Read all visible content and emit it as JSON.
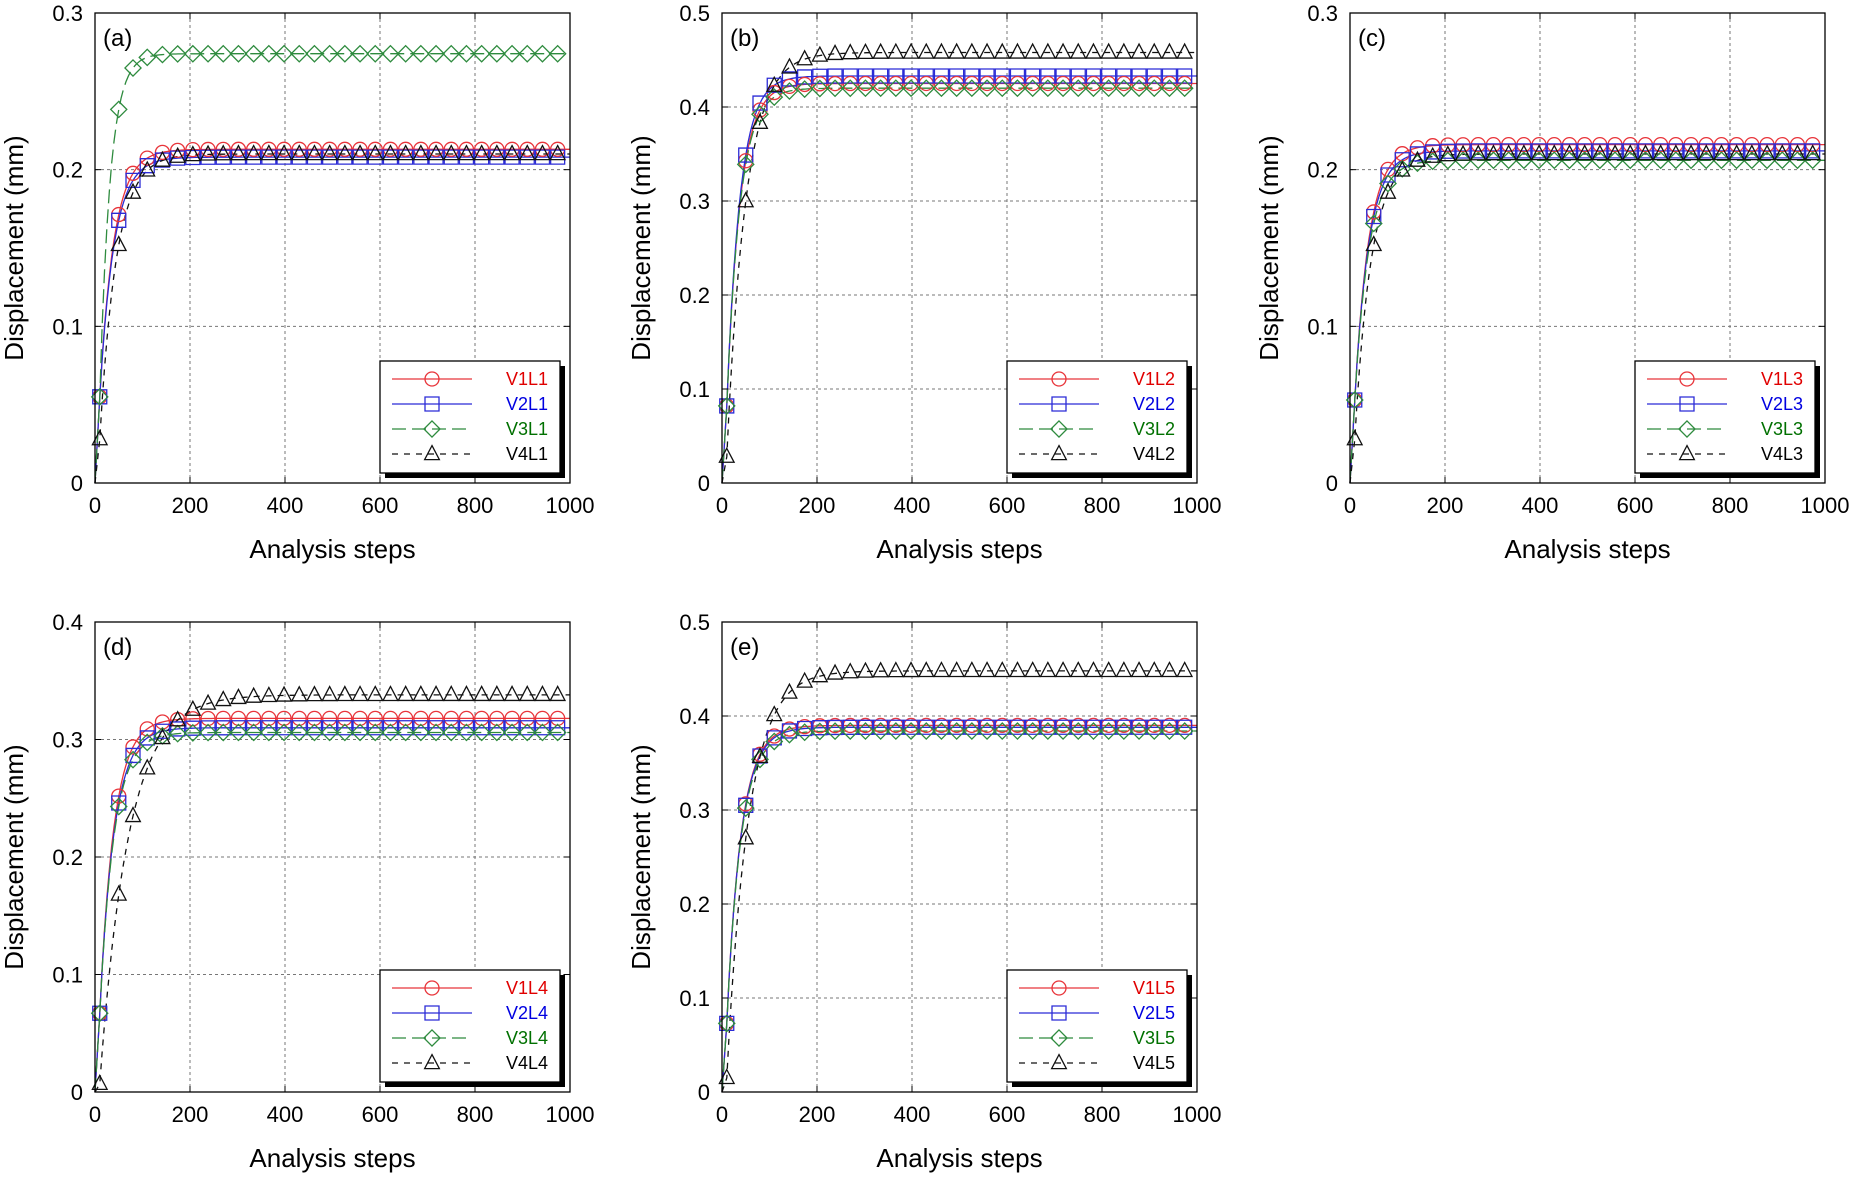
{
  "colors": {
    "V1": "#e8343a",
    "V2": "#2b2bd6",
    "V3": "#2e8b3e",
    "V4": "#111111",
    "V1_text": "#e00000",
    "V2_text": "#0000e0",
    "V3_text": "#007000",
    "V4_text": "#000000"
  },
  "chart_data": [
    {
      "type": "line",
      "panel_label": "(a)",
      "xlabel": "Analysis steps",
      "ylabel": "Displacement (mm)",
      "xlim": [
        0,
        1000
      ],
      "ylim": [
        0,
        0.3
      ],
      "xticks": [
        0,
        200,
        400,
        600,
        800,
        1000
      ],
      "xtick_labels": [
        "0",
        "200",
        "400",
        "600",
        "800",
        "1000"
      ],
      "yticks": [
        0,
        0.1,
        0.2,
        0.3
      ],
      "ytick_labels": [
        "0",
        "0.1",
        "0.2",
        "0.3"
      ],
      "grid": true,
      "legend_position": "bottom-right",
      "series": [
        {
          "name": "V1L1",
          "key": "V1",
          "marker": "circle",
          "plateau": 0.213,
          "initial": 0.055,
          "tau": 30
        },
        {
          "name": "V2L1",
          "key": "V2",
          "marker": "square",
          "plateau": 0.208,
          "initial": 0.055,
          "tau": 30
        },
        {
          "name": "V3L1",
          "key": "V3",
          "marker": "diamond",
          "plateau": 0.274,
          "initial": 0.055,
          "tau": 22
        },
        {
          "name": "V4L1",
          "key": "V4",
          "marker": "triangle",
          "plateau": 0.21,
          "initial": 0.028,
          "tau": 35
        }
      ]
    },
    {
      "type": "line",
      "panel_label": "(b)",
      "xlabel": "Analysis steps",
      "ylabel": "Displacement (mm)",
      "xlim": [
        0,
        1000
      ],
      "ylim": [
        0,
        0.5
      ],
      "xticks": [
        0,
        200,
        400,
        600,
        800,
        1000
      ],
      "xtick_labels": [
        "0",
        "200",
        "400",
        "600",
        "800",
        "1000"
      ],
      "yticks": [
        0,
        0.1,
        0.2,
        0.3,
        0.4,
        0.5
      ],
      "ytick_labels": [
        "0",
        "0.1",
        "0.2",
        "0.3",
        "0.4",
        "0.5"
      ],
      "grid": true,
      "legend_position": "bottom-right",
      "series": [
        {
          "name": "V1L2",
          "key": "V1",
          "marker": "circle",
          "plateau": 0.425,
          "initial": 0.082,
          "tau": 28
        },
        {
          "name": "V2L2",
          "key": "V2",
          "marker": "square",
          "plateau": 0.433,
          "initial": 0.082,
          "tau": 28
        },
        {
          "name": "V3L2",
          "key": "V3",
          "marker": "diamond",
          "plateau": 0.42,
          "initial": 0.082,
          "tau": 28
        },
        {
          "name": "V4L2",
          "key": "V4",
          "marker": "triangle",
          "plateau": 0.458,
          "initial": 0.028,
          "tau": 40
        }
      ]
    },
    {
      "type": "line",
      "panel_label": "(c)",
      "xlabel": "Analysis steps",
      "ylabel": "Displacement (mm)",
      "xlim": [
        0,
        1000
      ],
      "ylim": [
        0,
        0.3
      ],
      "xticks": [
        0,
        200,
        400,
        600,
        800,
        1000
      ],
      "xtick_labels": [
        "0",
        "200",
        "400",
        "600",
        "800",
        "1000"
      ],
      "yticks": [
        0,
        0.1,
        0.2,
        0.3
      ],
      "ytick_labels": [
        "0",
        "0.1",
        "0.2",
        "0.3"
      ],
      "grid": true,
      "legend_position": "bottom-right",
      "series": [
        {
          "name": "V1L3",
          "key": "V1",
          "marker": "circle",
          "plateau": 0.216,
          "initial": 0.053,
          "tau": 30
        },
        {
          "name": "V2L3",
          "key": "V2",
          "marker": "square",
          "plateau": 0.212,
          "initial": 0.053,
          "tau": 30
        },
        {
          "name": "V3L3",
          "key": "V3",
          "marker": "diamond",
          "plateau": 0.206,
          "initial": 0.053,
          "tau": 30
        },
        {
          "name": "V4L3",
          "key": "V4",
          "marker": "triangle",
          "plateau": 0.21,
          "initial": 0.028,
          "tau": 35
        }
      ]
    },
    {
      "type": "line",
      "panel_label": "(d)",
      "xlabel": "Analysis steps",
      "ylabel": "Displacement (mm)",
      "xlim": [
        0,
        1000
      ],
      "ylim": [
        0,
        0.4
      ],
      "xticks": [
        0,
        200,
        400,
        600,
        800,
        1000
      ],
      "xtick_labels": [
        "0",
        "200",
        "400",
        "600",
        "800",
        "1000"
      ],
      "yticks": [
        0,
        0.1,
        0.2,
        0.3,
        0.4
      ],
      "ytick_labels": [
        "0",
        "0.1",
        "0.2",
        "0.3",
        "0.4"
      ],
      "grid": true,
      "legend_position": "bottom-right",
      "series": [
        {
          "name": "V1L4",
          "key": "V1",
          "marker": "circle",
          "plateau": 0.318,
          "initial": 0.067,
          "tau": 30
        },
        {
          "name": "V2L4",
          "key": "V2",
          "marker": "square",
          "plateau": 0.31,
          "initial": 0.067,
          "tau": 30
        },
        {
          "name": "V3L4",
          "key": "V3",
          "marker": "diamond",
          "plateau": 0.306,
          "initial": 0.067,
          "tau": 30
        },
        {
          "name": "V4L4",
          "key": "V4",
          "marker": "triangle",
          "plateau": 0.338,
          "initial": 0.007,
          "tau": 60
        }
      ]
    },
    {
      "type": "line",
      "panel_label": "(e)",
      "xlabel": "Analysis steps",
      "ylabel": "Displacement (mm)",
      "xlim": [
        0,
        1000
      ],
      "ylim": [
        0,
        0.5
      ],
      "xticks": [
        0,
        200,
        400,
        600,
        800,
        1000
      ],
      "xtick_labels": [
        "0",
        "200",
        "400",
        "600",
        "800",
        "1000"
      ],
      "yticks": [
        0,
        0.1,
        0.2,
        0.3,
        0.4,
        0.5
      ],
      "ytick_labels": [
        "0",
        "0.1",
        "0.2",
        "0.3",
        "0.4",
        "0.5"
      ],
      "grid": true,
      "legend_position": "bottom-right",
      "series": [
        {
          "name": "V1L5",
          "key": "V1",
          "marker": "circle",
          "plateau": 0.39,
          "initial": 0.073,
          "tau": 30
        },
        {
          "name": "V2L5",
          "key": "V2",
          "marker": "square",
          "plateau": 0.388,
          "initial": 0.073,
          "tau": 30
        },
        {
          "name": "V3L5",
          "key": "V3",
          "marker": "diamond",
          "plateau": 0.384,
          "initial": 0.073,
          "tau": 30
        },
        {
          "name": "V4L5",
          "key": "V4",
          "marker": "triangle",
          "plateau": 0.448,
          "initial": 0.015,
          "tau": 45
        }
      ]
    }
  ]
}
